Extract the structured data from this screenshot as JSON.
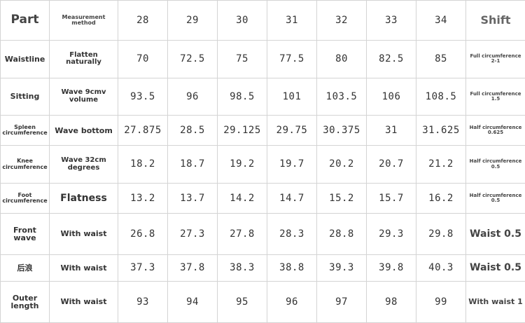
{
  "table": {
    "header": [
      "Part",
      "Measurement method",
      "28",
      "29",
      "30",
      "31",
      "32",
      "33",
      "34",
      "Shift"
    ],
    "rows": [
      [
        "Waistline",
        "Flatten naturally",
        "70",
        "72.5",
        "75",
        "77.5",
        "80",
        "82.5",
        "85",
        "Full circumference 2-1"
      ],
      [
        "Sitting",
        "Wave 9cmv volume",
        "93.5",
        "96",
        "98.5",
        "101",
        "103.5",
        "106",
        "108.5",
        "Full circumference 1.5"
      ],
      [
        "Spleen circumference",
        "Wave bottom",
        "27.875",
        "28.5",
        "29.125",
        "29.75",
        "30.375",
        "31",
        "31.625",
        "Half circumference 0.625"
      ],
      [
        "Knee circumference",
        "Wave 32cm degrees",
        "18.2",
        "18.7",
        "19.2",
        "19.7",
        "20.2",
        "20.7",
        "21.2",
        "Half circumference 0.5"
      ],
      [
        "Foot circumference",
        "Flatness",
        "13.2",
        "13.7",
        "14.2",
        "14.7",
        "15.2",
        "15.7",
        "16.2",
        "Half circumference 0.5"
      ],
      [
        "Front wave",
        "With waist",
        "26.8",
        "27.3",
        "27.8",
        "28.3",
        "28.8",
        "29.3",
        "29.8",
        "Waist 0.5"
      ],
      [
        "后浪",
        "With waist",
        "37.3",
        "37.8",
        "38.3",
        "38.8",
        "39.3",
        "39.8",
        "40.3",
        "Waist 0.5"
      ],
      [
        "Outer length",
        "With waist",
        "93",
        "94",
        "95",
        "96",
        "97",
        "98",
        "99",
        "With waist 1"
      ]
    ]
  }
}
